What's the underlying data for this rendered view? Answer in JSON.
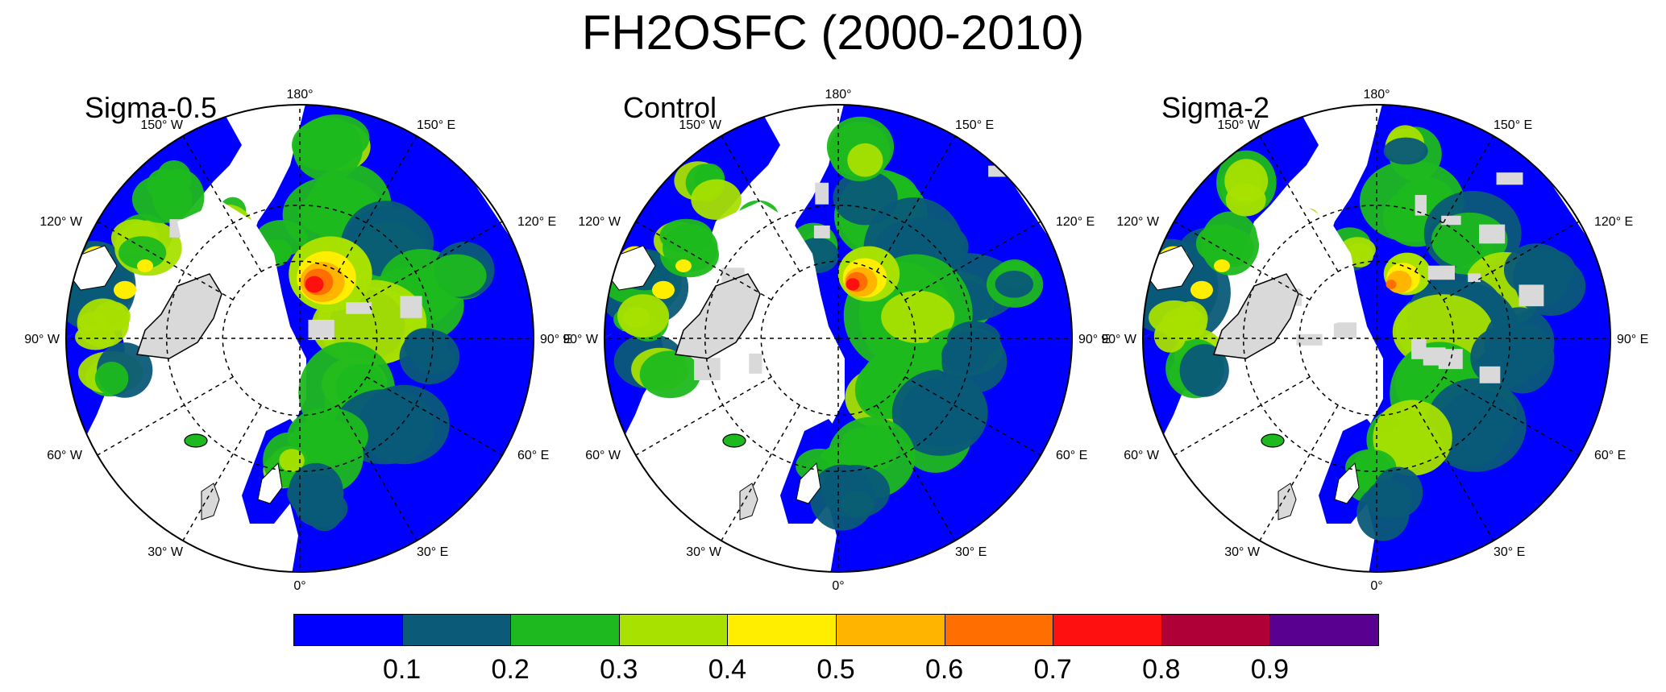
{
  "title": "FH2OSFC (2000-2010)",
  "panels": [
    {
      "label": "Sigma-0.5",
      "variant": 0
    },
    {
      "label": "Control",
      "variant": 1
    },
    {
      "label": "Sigma-2",
      "variant": 2
    }
  ],
  "longitude_labels": {
    "top": "180°",
    "nw": "150° W",
    "ne": "150° E",
    "w120": "120° W",
    "e120": "120° E",
    "w90": "90° W",
    "e90": "90° E",
    "w60": "60° W",
    "e60": "60° E",
    "w30": "30° W",
    "e30": "30° E",
    "bottom": "0°"
  },
  "colorbar": {
    "colors": [
      "#0000ff",
      "#0a5a78",
      "#1eb91e",
      "#a8e000",
      "#ffee00",
      "#ffb400",
      "#ff6e00",
      "#ff1010",
      "#b00038",
      "#5a0090"
    ],
    "ticks": [
      "0.1",
      "0.2",
      "0.3",
      "0.4",
      "0.5",
      "0.6",
      "0.7",
      "0.8",
      "0.9"
    ]
  }
}
